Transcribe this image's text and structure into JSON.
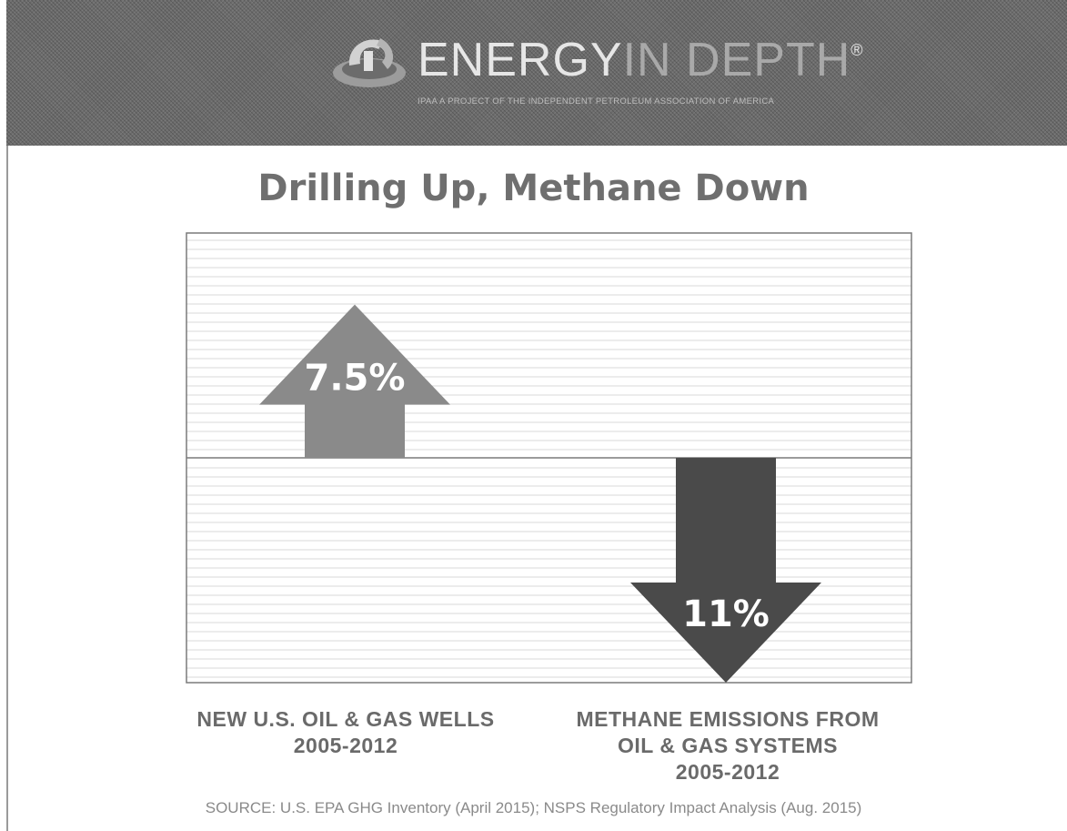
{
  "header": {
    "logo_main": "ENERGY",
    "logo_light": "IN DEPTH",
    "logo_mark": "®",
    "tagline": "IPAA A PROJECT OF THE INDEPENDENT PETROLEUM ASSOCIATION OF AMERICA"
  },
  "chart_data": {
    "type": "bar",
    "title": "Drilling Up, Methane Down",
    "categories": [
      "NEW U.S. OIL & GAS WELLS 2005-2012",
      "METHANE EMISSIONS FROM OIL & GAS SYSTEMS 2005-2012"
    ],
    "values": [
      7.5,
      -11
    ],
    "value_labels": [
      "7.5%",
      "11%"
    ],
    "unit": "%",
    "ylim": [
      -11,
      11
    ],
    "grid": true,
    "colors": [
      "#8a8a8a",
      "#4a4a4a"
    ]
  },
  "labels": {
    "cat1_line1": "NEW U.S. OIL & GAS WELLS",
    "cat1_line2": "2005-2012",
    "cat2_line1": "METHANE EMISSIONS FROM",
    "cat2_line2": "OIL & GAS SYSTEMS",
    "cat2_line3": "2005-2012"
  },
  "source": "SOURCE: U.S. EPA GHG Inventory (April 2015); NSPS Regulatory Impact Analysis (Aug. 2015)"
}
